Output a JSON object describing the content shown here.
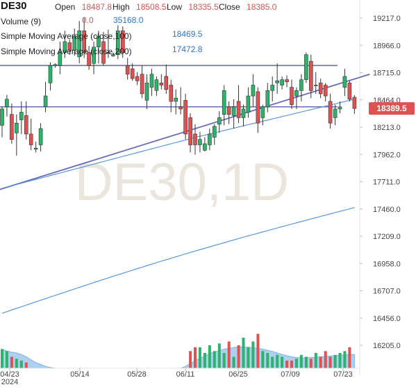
{
  "legend": {
    "symbol": "DE30",
    "open_label": "Open",
    "open_value": "18487.8",
    "high_label": "High",
    "high_value": "18508.5",
    "low_label": "Low",
    "low_value": "18335.5",
    "close_label": "Close",
    "close_value": "18385.0",
    "volume_label": "Volume (9)",
    "volume_value": "0.0",
    "volume_ma_value": "35168.0",
    "sma100_label": "Simple Moving Average (close,100)",
    "sma100_value": "18469.5",
    "sma200_label": "Simple Moving Average (close,200)",
    "sma200_value": "17472.8"
  },
  "watermark": "DE30,1D",
  "last_price_tag": "18389.5",
  "colors": {
    "up": "#2db36b",
    "down": "#e05252",
    "ma": "#4a90e2",
    "trendline": "#6b6bb8",
    "volume_area": "#9ec8ea",
    "price_tag_bg": "#e05252",
    "red_text": "#d9534f",
    "blue_text": "#2f74c8"
  },
  "chart_data": {
    "type": "candlestick",
    "y_ticks": [
      "19217.0",
      "18966.0",
      "18715.0",
      "18464.0",
      "18213.0",
      "17962.0",
      "17711.0",
      "17460.0",
      "17209.0",
      "16958.0",
      "16707.0",
      "16456.0",
      "16205.0"
    ],
    "x_ticks": [
      "04/23",
      "05/14",
      "05/28",
      "06/11",
      "06/25",
      "07/09",
      "07/23"
    ],
    "x_subtick": "2024",
    "y_range": [
      16100,
      19290
    ],
    "horizontal_lines": [
      18780,
      18400
    ],
    "trendline": [
      [
        0,
        17640
      ],
      [
        73,
        18700
      ]
    ],
    "candles": [
      {
        "o": 18230,
        "h": 18400,
        "l": 18120,
        "c": 18380
      },
      {
        "o": 18400,
        "h": 18510,
        "l": 18310,
        "c": 18470
      },
      {
        "o": 18330,
        "h": 18430,
        "l": 18060,
        "c": 18100
      },
      {
        "o": 18160,
        "h": 18330,
        "l": 17950,
        "c": 18250
      },
      {
        "o": 18280,
        "h": 18450,
        "l": 18150,
        "c": 18350
      },
      {
        "o": 18320,
        "h": 18450,
        "l": 18100,
        "c": 18150
      },
      {
        "o": 18150,
        "h": 18290,
        "l": 18000,
        "c": 18050
      },
      {
        "o": 18010,
        "h": 18080,
        "l": 17980,
        "c": 18020
      },
      {
        "o": 18050,
        "h": 18250,
        "l": 17990,
        "c": 18200
      },
      {
        "o": 18400,
        "h": 18630,
        "l": 18350,
        "c": 18500
      },
      {
        "o": 18620,
        "h": 18810,
        "l": 18550,
        "c": 18780
      },
      {
        "o": 18780,
        "h": 18800,
        "l": 18760,
        "c": 18790
      },
      {
        "o": 18780,
        "h": 19000,
        "l": 18700,
        "c": 18900
      },
      {
        "o": 18900,
        "h": 19100,
        "l": 18850,
        "c": 19000
      },
      {
        "o": 18990,
        "h": 19020,
        "l": 18880,
        "c": 18920
      },
      {
        "o": 18920,
        "h": 19120,
        "l": 18870,
        "c": 19050
      },
      {
        "o": 18860,
        "h": 19190,
        "l": 18800,
        "c": 19100
      },
      {
        "o": 19100,
        "h": 19220,
        "l": 18850,
        "c": 18900
      },
      {
        "o": 18900,
        "h": 18960,
        "l": 18740,
        "c": 18780
      },
      {
        "o": 18800,
        "h": 19000,
        "l": 18700,
        "c": 18950
      },
      {
        "o": 18950,
        "h": 19100,
        "l": 18800,
        "c": 19050
      },
      {
        "o": 19000,
        "h": 19090,
        "l": 18780,
        "c": 18800
      },
      {
        "o": 18900,
        "h": 19110,
        "l": 18850,
        "c": 18900
      },
      {
        "o": 18870,
        "h": 18900,
        "l": 18860,
        "c": 18880
      },
      {
        "o": 18880,
        "h": 19150,
        "l": 18840,
        "c": 19100
      },
      {
        "o": 19100,
        "h": 19140,
        "l": 18850,
        "c": 18900
      },
      {
        "o": 18780,
        "h": 18850,
        "l": 18650,
        "c": 18700
      },
      {
        "o": 18750,
        "h": 18800,
        "l": 18640,
        "c": 18660
      },
      {
        "o": 18680,
        "h": 18720,
        "l": 18600,
        "c": 18640
      },
      {
        "o": 18700,
        "h": 18780,
        "l": 18480,
        "c": 18520
      },
      {
        "o": 18460,
        "h": 18700,
        "l": 18380,
        "c": 18620
      },
      {
        "o": 18580,
        "h": 18750,
        "l": 18500,
        "c": 18700
      },
      {
        "o": 18550,
        "h": 18680,
        "l": 18500,
        "c": 18650
      },
      {
        "o": 18620,
        "h": 18700,
        "l": 18560,
        "c": 18600
      },
      {
        "o": 18680,
        "h": 18790,
        "l": 18520,
        "c": 18560
      },
      {
        "o": 18600,
        "h": 18650,
        "l": 18350,
        "c": 18450
      },
      {
        "o": 18450,
        "h": 18560,
        "l": 18330,
        "c": 18480
      },
      {
        "o": 18400,
        "h": 18580,
        "l": 18330,
        "c": 18380
      },
      {
        "o": 18460,
        "h": 18520,
        "l": 18100,
        "c": 18150
      },
      {
        "o": 18300,
        "h": 18340,
        "l": 17980,
        "c": 18050
      },
      {
        "o": 18150,
        "h": 18240,
        "l": 17960,
        "c": 18050
      },
      {
        "o": 18050,
        "h": 18170,
        "l": 17980,
        "c": 18100
      },
      {
        "o": 18000,
        "h": 18120,
        "l": 17990,
        "c": 18060
      },
      {
        "o": 18050,
        "h": 18200,
        "l": 18000,
        "c": 18150
      },
      {
        "o": 18120,
        "h": 18240,
        "l": 18050,
        "c": 18220
      },
      {
        "o": 18240,
        "h": 18360,
        "l": 18160,
        "c": 18300
      },
      {
        "o": 18330,
        "h": 18600,
        "l": 18230,
        "c": 18550
      },
      {
        "o": 18400,
        "h": 18450,
        "l": 18240,
        "c": 18330
      },
      {
        "o": 18320,
        "h": 18470,
        "l": 18200,
        "c": 18400
      },
      {
        "o": 18450,
        "h": 18600,
        "l": 18250,
        "c": 18300
      },
      {
        "o": 18300,
        "h": 18420,
        "l": 18220,
        "c": 18380
      },
      {
        "o": 18350,
        "h": 18580,
        "l": 18300,
        "c": 18500
      },
      {
        "o": 18500,
        "h": 18700,
        "l": 18400,
        "c": 18600
      },
      {
        "o": 18540,
        "h": 18580,
        "l": 18160,
        "c": 18250
      },
      {
        "o": 18300,
        "h": 18420,
        "l": 18230,
        "c": 18400
      },
      {
        "o": 18400,
        "h": 18620,
        "l": 18350,
        "c": 18550
      },
      {
        "o": 18550,
        "h": 18680,
        "l": 18450,
        "c": 18600
      },
      {
        "o": 18620,
        "h": 18800,
        "l": 18520,
        "c": 18640
      },
      {
        "o": 18600,
        "h": 18680,
        "l": 18560,
        "c": 18650
      },
      {
        "o": 18650,
        "h": 18690,
        "l": 18580,
        "c": 18630
      },
      {
        "o": 18580,
        "h": 18650,
        "l": 18380,
        "c": 18420
      },
      {
        "o": 18500,
        "h": 18580,
        "l": 18380,
        "c": 18550
      },
      {
        "o": 18550,
        "h": 18700,
        "l": 18450,
        "c": 18650
      },
      {
        "o": 18650,
        "h": 18900,
        "l": 18620,
        "c": 18880
      },
      {
        "o": 18820,
        "h": 18880,
        "l": 18480,
        "c": 18550
      },
      {
        "o": 18600,
        "h": 18720,
        "l": 18520,
        "c": 18600
      },
      {
        "o": 18620,
        "h": 18660,
        "l": 18480,
        "c": 18520
      },
      {
        "o": 18600,
        "h": 18620,
        "l": 18450,
        "c": 18500
      },
      {
        "o": 18450,
        "h": 18520,
        "l": 18200,
        "c": 18250
      },
      {
        "o": 18300,
        "h": 18420,
        "l": 18230,
        "c": 18380
      },
      {
        "o": 18380,
        "h": 18450,
        "l": 18340,
        "c": 18400
      },
      {
        "o": 18580,
        "h": 18750,
        "l": 18500,
        "c": 18680
      },
      {
        "o": 18620,
        "h": 18640,
        "l": 18450,
        "c": 18470
      },
      {
        "o": 18487.8,
        "h": 18508.5,
        "l": 18335.5,
        "c": 18385.0
      }
    ],
    "volume": {
      "bars": [
        0.5,
        0.45,
        0.3,
        0.25,
        0.2,
        0.15,
        0,
        0,
        0,
        0,
        0,
        0,
        0,
        0,
        0,
        0,
        0,
        0,
        0,
        0,
        0,
        0,
        0,
        0,
        0,
        0,
        0,
        0,
        0,
        0,
        0,
        0,
        0,
        0,
        0,
        0,
        0,
        0,
        0,
        0.45,
        0.55,
        0.55,
        0.4,
        0.6,
        0.45,
        0.65,
        0.4,
        0.7,
        0.3,
        0.6,
        0.8,
        0.55,
        0.7,
        0.9,
        0.45,
        0.4,
        0.3,
        0.35,
        0.3,
        0.2,
        0.2,
        0.25,
        0.35,
        0.3,
        0.25,
        0.4,
        0.3,
        0.45,
        0.3,
        0.35,
        0.4,
        0.45,
        0.55,
        0
      ],
      "ma_area": [
        0.5,
        0.45,
        0.42,
        0.4,
        0.36,
        0.3,
        0.22,
        0.15,
        0.1,
        0.05,
        0.02,
        0,
        0,
        0,
        0,
        0,
        0,
        0,
        0,
        0,
        0,
        0,
        0,
        0,
        0,
        0,
        0,
        0,
        0,
        0,
        0,
        0,
        0,
        0,
        0,
        0,
        0,
        0,
        0.05,
        0.12,
        0.2,
        0.26,
        0.32,
        0.38,
        0.42,
        0.46,
        0.5,
        0.52,
        0.54,
        0.56,
        0.56,
        0.55,
        0.54,
        0.52,
        0.5,
        0.47,
        0.44,
        0.4,
        0.36,
        0.33,
        0.3,
        0.28,
        0.27,
        0.27,
        0.28,
        0.29,
        0.3,
        0.31,
        0.32,
        0.33,
        0.34,
        0.35,
        0.36,
        0.36
      ]
    }
  }
}
